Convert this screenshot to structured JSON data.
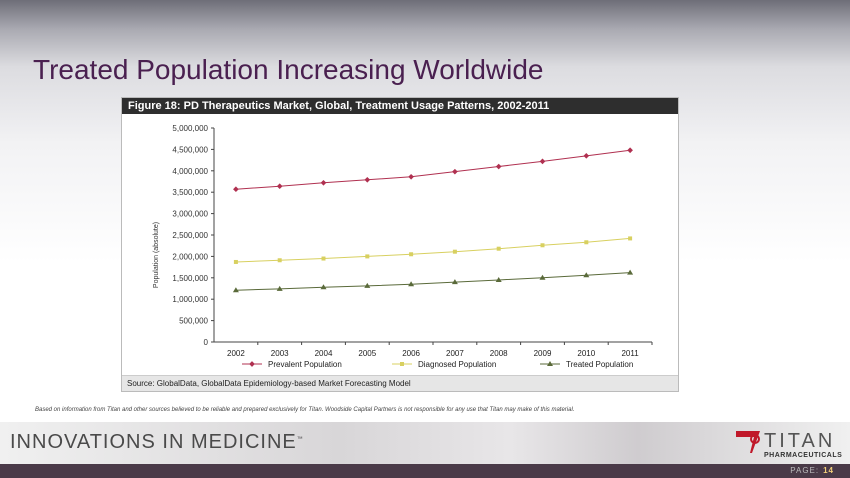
{
  "title": "Treated Population Increasing Worldwide",
  "disclaimer": "Based on information from Titan and other sources believed to be reliable and prepared exclusively for Titan. Woodside Capital Partners is not responsible for any use that Titan may make of this material.",
  "footer": {
    "tagline": "INNOVATIONS IN MEDICINE",
    "tm": "™",
    "logo_name": "TITAN",
    "logo_sub": "PHARMACEUTICALS",
    "page_label": "PAGE:",
    "page_number": "14"
  },
  "chart_data": {
    "type": "line",
    "title": "Figure 18:  PD Therapeutics Market, Global, Treatment Usage Patterns, 2002-2011",
    "source": "Source: GlobalData, GlobalData Epidemiology-based Market Forecasting Model",
    "xlabel": "",
    "ylabel": "Population (absolute)",
    "ylim": [
      0,
      5000000
    ],
    "yticks": [
      "0",
      "500,000",
      "1,000,000",
      "1,500,000",
      "2,000,000",
      "2,500,000",
      "3,000,000",
      "3,500,000",
      "4,000,000",
      "4,500,000",
      "5,000,000"
    ],
    "categories": [
      "2002",
      "2003",
      "2004",
      "2005",
      "2006",
      "2007",
      "2008",
      "2009",
      "2010",
      "2011"
    ],
    "legend_position": "bottom",
    "series": [
      {
        "name": "Prevalent Population",
        "color": "#b03050",
        "marker": "diamond",
        "values": [
          3570000,
          3640000,
          3720000,
          3790000,
          3860000,
          3980000,
          4100000,
          4220000,
          4350000,
          4480000
        ]
      },
      {
        "name": "Diagnosed Population",
        "color": "#d8d060",
        "marker": "square",
        "values": [
          1870000,
          1910000,
          1950000,
          2000000,
          2050000,
          2110000,
          2180000,
          2260000,
          2330000,
          2420000
        ]
      },
      {
        "name": "Treated Population",
        "color": "#5a6a3a",
        "marker": "triangle",
        "values": [
          1210000,
          1240000,
          1280000,
          1310000,
          1350000,
          1400000,
          1450000,
          1500000,
          1560000,
          1620000
        ]
      }
    ]
  }
}
